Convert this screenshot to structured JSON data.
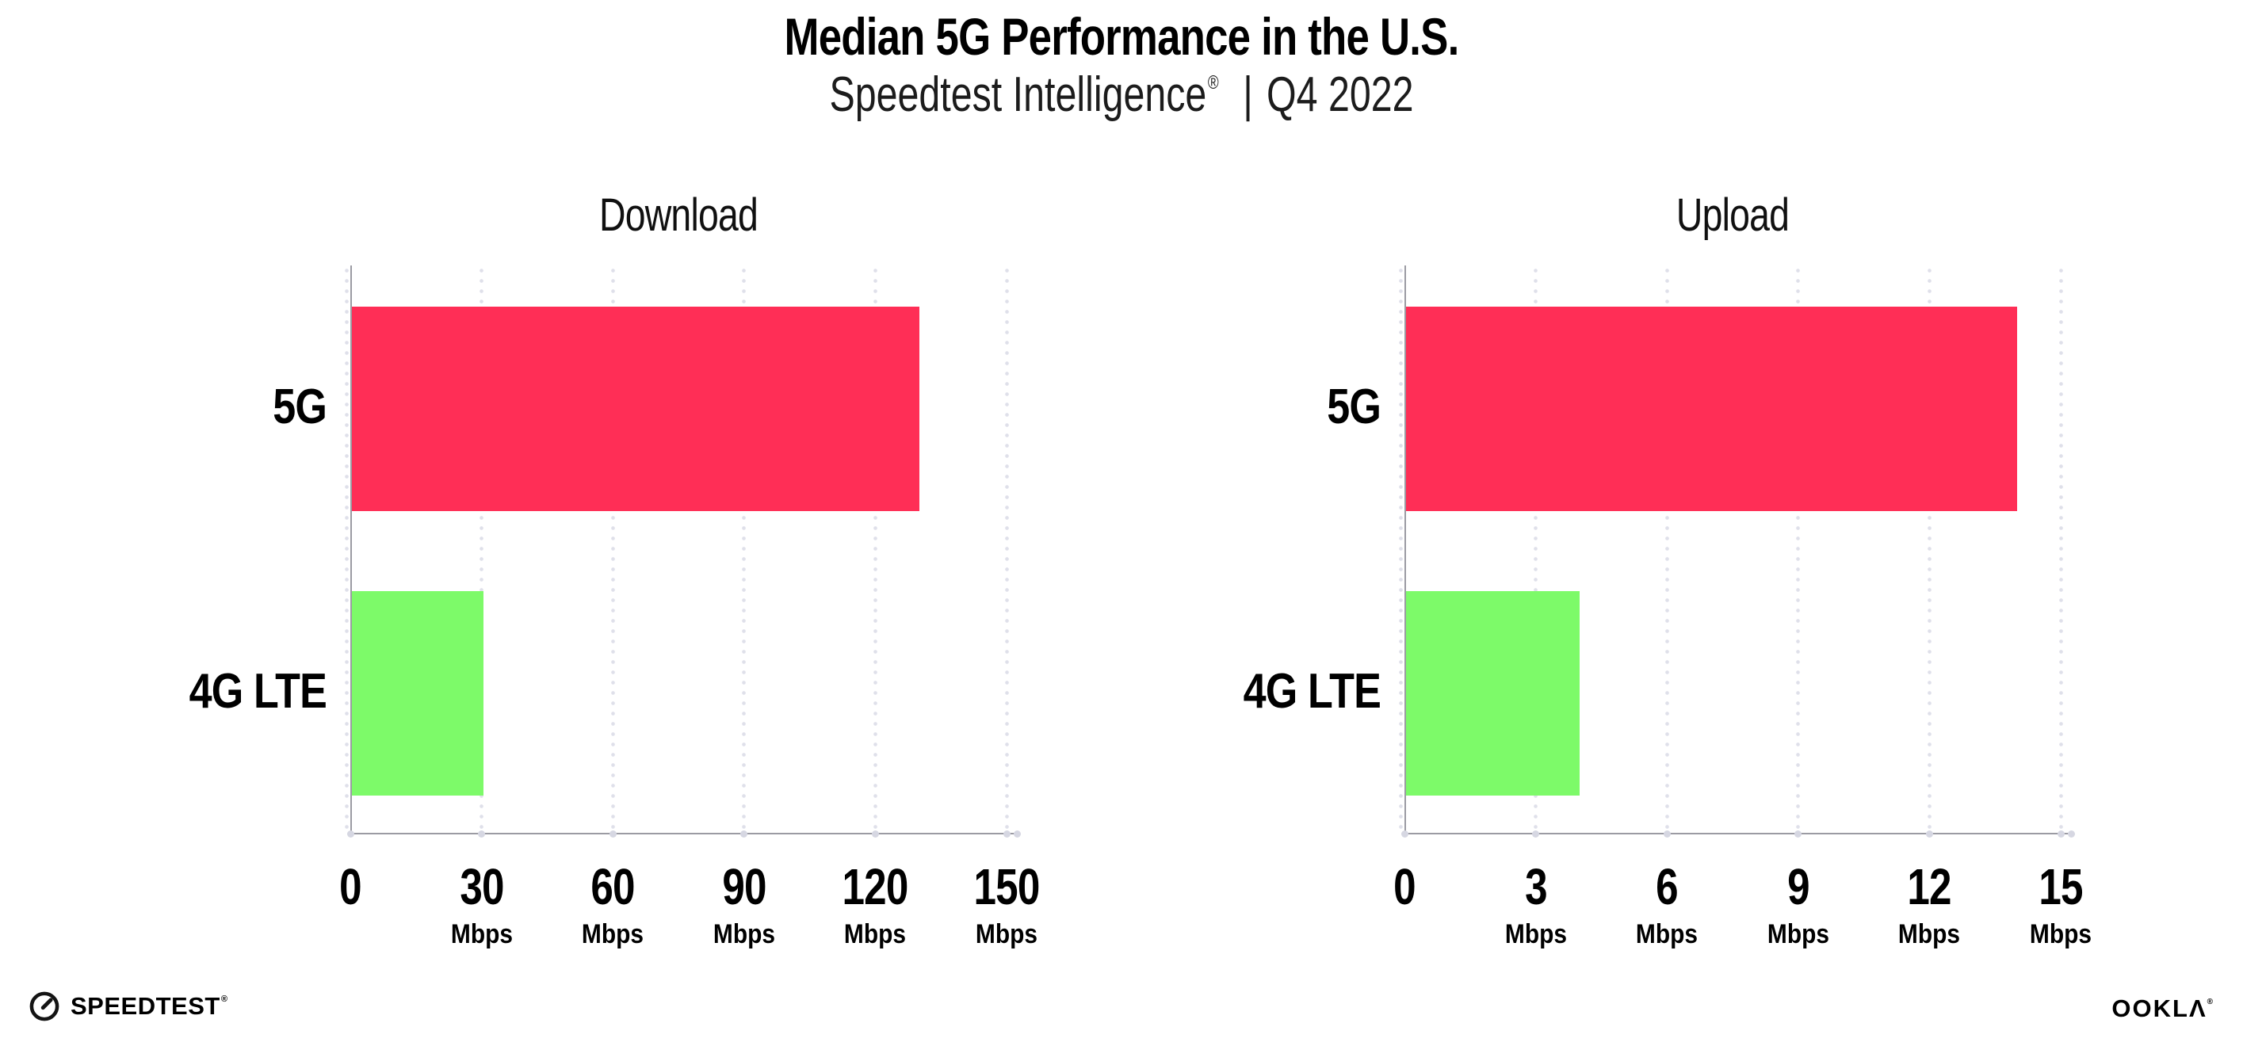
{
  "header": {
    "title": "Median 5G Performance in the U.S.",
    "subtitle_brand": "Speedtest Intelligence",
    "subtitle_reg": "®",
    "subtitle_divider": "|",
    "subtitle_period": "Q4 2022"
  },
  "chart_data": [
    {
      "type": "bar",
      "orientation": "horizontal",
      "title": "Download",
      "categories": [
        "5G",
        "4G LTE"
      ],
      "values": [
        130,
        30.5
      ],
      "unit": "Mbps",
      "ticks": [
        0,
        30,
        60,
        90,
        120,
        150
      ],
      "xlim": [
        0,
        150
      ],
      "grid": "dotted-vertical",
      "legend": "none",
      "bar_colors": [
        "#ff2e56",
        "#7dfa69"
      ]
    },
    {
      "type": "bar",
      "orientation": "horizontal",
      "title": "Upload",
      "categories": [
        "5G",
        "4G LTE"
      ],
      "values": [
        14,
        4
      ],
      "unit": "Mbps",
      "ticks": [
        0,
        3,
        6,
        9,
        12,
        15
      ],
      "xlim": [
        0,
        15
      ],
      "grid": "dotted-vertical",
      "legend": "none",
      "bar_colors": [
        "#ff2e56",
        "#7dfa69"
      ]
    }
  ],
  "colors": {
    "bar_5g": "#ff2e56",
    "bar_4g_lte": "#7dfa69",
    "axis_line": "#9b9ba3",
    "grid_dot": "#dfe0ea",
    "tick_dot": "#d6d7e2",
    "background": "#ffffff",
    "text": "#000000"
  },
  "footer": {
    "speedtest_label": "SPEEDTEST",
    "speedtest_reg": "®",
    "ookla_label": "OOKLΛ",
    "ookla_reg": "®"
  }
}
